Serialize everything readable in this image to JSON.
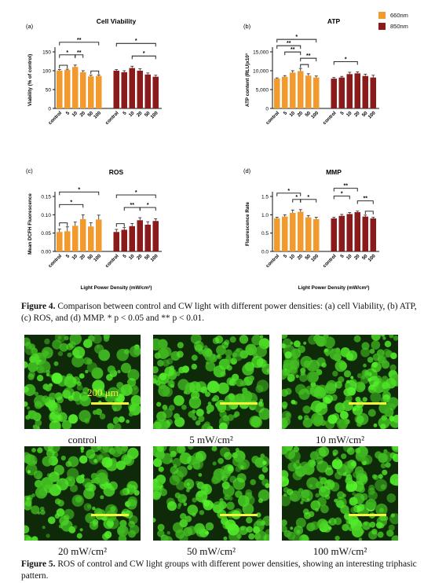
{
  "figure4": {
    "legend": {
      "a_label": "660nm",
      "b_label": "850nm",
      "a_color": "#f39a2e",
      "b_color": "#8b1a1a"
    },
    "xlabel": "Light Power Density (mW/cm²)",
    "caption_title": "Figure 4.",
    "caption_text": "Comparison between control and CW light with different power densities: (a) cell Viability, (b) ATP, (c) ROS, and (d) MMP. * p < 0.05 and ** p < 0.01."
  },
  "figure5": {
    "scale_label": "200 μm",
    "panels": [
      {
        "label": "control"
      },
      {
        "label": "5 mW/cm²"
      },
      {
        "label": "10 mW/cm²"
      },
      {
        "label": "20 mW/cm²"
      },
      {
        "label": "50 mW/cm²"
      },
      {
        "label": "100 mW/cm²"
      }
    ],
    "caption_title": "Figure 5.",
    "caption_text": "ROS of control and CW light groups with different power densities, showing an interesting triphasic pattern."
  },
  "chart_data": [
    {
      "id": "a",
      "type": "bar",
      "panel_label": "(a)",
      "title": "Cell Viability",
      "ylabel": "Viability (% of control)",
      "ylim": [
        0,
        150
      ],
      "yticks": [
        "0",
        "50",
        "100",
        "150"
      ],
      "categories": [
        "control",
        "5",
        "10",
        "20",
        "50",
        "100"
      ],
      "series": [
        {
          "name": "660nm",
          "values": [
            100,
            102,
            110,
            96,
            85,
            86
          ],
          "errors": [
            3,
            2,
            5,
            4,
            3,
            3
          ]
        },
        {
          "name": "850nm",
          "values": [
            100,
            96,
            107,
            100,
            90,
            84
          ],
          "errors": [
            3,
            4,
            5,
            5,
            4,
            4
          ]
        }
      ],
      "sig": [
        {
          "s": 0,
          "i": 0,
          "j": 5,
          "lvl": 3,
          "t": "**"
        },
        {
          "s": 0,
          "i": 0,
          "j": 2,
          "lvl": 1,
          "t": "*"
        },
        {
          "s": 0,
          "i": 2,
          "j": 3,
          "lvl": 1,
          "t": "**"
        },
        {
          "s": 0,
          "i": 4,
          "j": 5,
          "lvl": 0,
          "t": ""
        },
        {
          "s": 0,
          "i": 0,
          "j": 1,
          "lvl": 0,
          "t": ""
        },
        {
          "s": 1,
          "i": 0,
          "j": 5,
          "lvl": 3,
          "t": "*"
        },
        {
          "s": 1,
          "i": 2,
          "j": 5,
          "lvl": 1,
          "t": "*"
        }
      ]
    },
    {
      "id": "b",
      "type": "bar",
      "panel_label": "(b)",
      "title": "ATP",
      "ylabel": "ATP content (RLU)x10³",
      "ylim": [
        0,
        15000
      ],
      "yticks": [
        "0",
        "5,000",
        "10,000",
        "15,000"
      ],
      "categories": [
        "control",
        "5",
        "10",
        "20",
        "50",
        "100"
      ],
      "series": [
        {
          "name": "660nm",
          "values": [
            7900,
            8400,
            9500,
            9900,
            8700,
            8200
          ],
          "errors": [
            200,
            300,
            500,
            700,
            500,
            400
          ]
        },
        {
          "name": "850nm",
          "values": [
            7900,
            8200,
            9100,
            9300,
            8600,
            8200
          ],
          "errors": [
            300,
            300,
            500,
            400,
            500,
            600
          ]
        }
      ],
      "sig": [
        {
          "s": 0,
          "i": 0,
          "j": 5,
          "lvl": 4,
          "t": "*"
        },
        {
          "s": 0,
          "i": 0,
          "j": 3,
          "lvl": 3,
          "t": "**"
        },
        {
          "s": 0,
          "i": 1,
          "j": 3,
          "lvl": 2,
          "t": "**"
        },
        {
          "s": 0,
          "i": 3,
          "j": 5,
          "lvl": 1,
          "t": "**"
        },
        {
          "s": 0,
          "i": 3,
          "j": 4,
          "lvl": 0,
          "t": ""
        },
        {
          "s": 1,
          "i": 0,
          "j": 3,
          "lvl": 1,
          "t": "*"
        }
      ]
    },
    {
      "id": "c",
      "type": "bar",
      "panel_label": "(c)",
      "title": "ROS",
      "ylabel": "Mean DCFH Fluorescence",
      "ylim": [
        0,
        0.15
      ],
      "yticks": [
        "0.00",
        "0.05",
        "0.10",
        "0.15"
      ],
      "categories": [
        "control",
        "5",
        "10",
        "20",
        "50",
        "100"
      ],
      "series": [
        {
          "name": "660nm",
          "values": [
            0.053,
            0.055,
            0.07,
            0.088,
            0.068,
            0.087
          ],
          "errors": [
            0.008,
            0.012,
            0.01,
            0.012,
            0.01,
            0.012
          ]
        },
        {
          "name": "850nm",
          "values": [
            0.053,
            0.059,
            0.069,
            0.085,
            0.073,
            0.083
          ],
          "errors": [
            0.007,
            0.006,
            0.007,
            0.007,
            0.008,
            0.006
          ]
        }
      ],
      "sig": [
        {
          "s": 0,
          "i": 0,
          "j": 5,
          "lvl": 3,
          "t": "*"
        },
        {
          "s": 0,
          "i": 0,
          "j": 3,
          "lvl": 1,
          "t": "*"
        },
        {
          "s": 0,
          "i": 0,
          "j": 1,
          "lvl": 0,
          "t": ""
        },
        {
          "s": 1,
          "i": 0,
          "j": 5,
          "lvl": 3,
          "t": "*"
        },
        {
          "s": 1,
          "i": 1,
          "j": 3,
          "lvl": 1,
          "t": "**"
        },
        {
          "s": 1,
          "i": 3,
          "j": 5,
          "lvl": 1,
          "t": "*"
        },
        {
          "s": 1,
          "i": 0,
          "j": 1,
          "lvl": 0,
          "t": ""
        }
      ]
    },
    {
      "id": "d",
      "type": "bar",
      "panel_label": "(d)",
      "title": "MMP",
      "ylabel": "Flourescence Rate",
      "ylim": [
        0,
        1.5
      ],
      "yticks": [
        "0.0",
        "0.5",
        "1.0",
        "1.5"
      ],
      "categories": [
        "control",
        "5",
        "10",
        "20",
        "50",
        "100"
      ],
      "series": [
        {
          "name": "660nm",
          "values": [
            0.9,
            0.95,
            1.05,
            1.08,
            0.93,
            0.88
          ],
          "errors": [
            0.03,
            0.05,
            0.08,
            0.06,
            0.05,
            0.05
          ]
        },
        {
          "name": "850nm",
          "values": [
            0.9,
            0.97,
            1.02,
            1.07,
            0.95,
            0.9
          ],
          "errors": [
            0.03,
            0.04,
            0.04,
            0.03,
            0.04,
            0.03
          ]
        }
      ],
      "sig": [
        {
          "s": 0,
          "i": 0,
          "j": 3,
          "lvl": 2,
          "t": "*"
        },
        {
          "s": 0,
          "i": 2,
          "j": 3,
          "lvl": 1,
          "t": "*"
        },
        {
          "s": 0,
          "i": 3,
          "j": 5,
          "lvl": 1,
          "t": "*"
        },
        {
          "s": 1,
          "i": 0,
          "j": 3,
          "lvl": 3,
          "t": "**"
        },
        {
          "s": 1,
          "i": 0,
          "j": 2,
          "lvl": 2,
          "t": "*"
        },
        {
          "s": 1,
          "i": 3,
          "j": 5,
          "lvl": 1,
          "t": "**"
        },
        {
          "s": 1,
          "i": 4,
          "j": 5,
          "lvl": 0,
          "t": ""
        }
      ]
    }
  ]
}
